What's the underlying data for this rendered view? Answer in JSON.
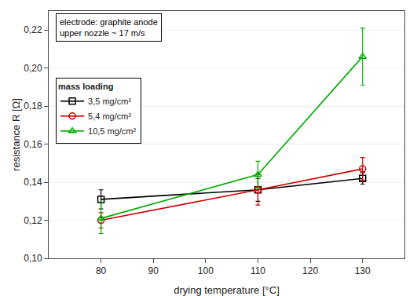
{
  "chart_data": {
    "type": "line",
    "x": [
      80,
      110,
      130
    ],
    "series": [
      {
        "name": "3,5 mg/cm²",
        "color": "black",
        "marker": "square",
        "values": [
          0.131,
          0.136,
          0.142
        ],
        "yerr": [
          0.005,
          0.006,
          0.003
        ]
      },
      {
        "name": "5,4 mg/cm²",
        "color": "#cc0000",
        "marker": "circle",
        "values": [
          0.12,
          0.136,
          0.147
        ],
        "yerr": [
          0.004,
          0.008,
          0.006
        ]
      },
      {
        "name": "10,5 mg/cm²",
        "color": "#00aa00",
        "marker": "triangle-up",
        "values": [
          0.121,
          0.144,
          0.206
        ],
        "yerr": [
          0.008,
          0.007,
          0.015
        ]
      }
    ],
    "xlabel": "drying temperature [°C]",
    "ylabel": "resistance R [Ω]",
    "xlim": [
      70,
      138
    ],
    "ylim": [
      0.1,
      0.23
    ],
    "xticks": [
      80,
      90,
      100,
      110,
      120,
      130
    ],
    "yticks": [
      {
        "value": 0.1,
        "label": "0,10"
      },
      {
        "value": 0.12,
        "label": "0,12"
      },
      {
        "value": 0.14,
        "label": "0,14"
      },
      {
        "value": 0.16,
        "label": "0,16"
      },
      {
        "value": 0.18,
        "label": "0,18"
      },
      {
        "value": 0.2,
        "label": "0,20"
      },
      {
        "value": 0.22,
        "label": "0,22"
      }
    ],
    "annotations": [
      "electrode: graphite anode",
      "upper nozzle ~ 17 m/s"
    ],
    "legend_title": "mass loading",
    "legend": "upper left",
    "grid": true
  }
}
